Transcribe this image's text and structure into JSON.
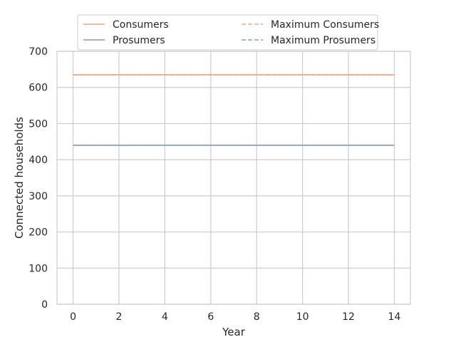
{
  "chart_data": {
    "type": "line",
    "title": "",
    "xlabel": "Year",
    "ylabel": "Connected households",
    "xlim": [
      -0.7,
      14.7
    ],
    "ylim": [
      0,
      700
    ],
    "xticks": [
      0,
      2,
      4,
      6,
      8,
      10,
      12,
      14
    ],
    "yticks": [
      0,
      100,
      200,
      300,
      400,
      500,
      600,
      700
    ],
    "grid": true,
    "legend_placement": "top-center",
    "x": [
      0,
      1,
      2,
      3,
      4,
      5,
      6,
      7,
      8,
      9,
      10,
      11,
      12,
      13,
      14
    ],
    "series": [
      {
        "name": "Consumers",
        "style": "solid",
        "color": "#f4a582",
        "values": [
          635,
          635,
          635,
          635,
          635,
          635,
          635,
          635,
          635,
          635,
          635,
          635,
          635,
          635,
          635
        ]
      },
      {
        "name": "Maximum Consumers",
        "style": "dashed",
        "color": "#f4a582",
        "values": [
          635,
          635,
          635,
          635,
          635,
          635,
          635,
          635,
          635,
          635,
          635,
          635,
          635,
          635,
          635
        ]
      },
      {
        "name": "Prosumers",
        "style": "solid",
        "color": "#7b9fc7",
        "values": [
          440,
          440,
          440,
          440,
          440,
          440,
          440,
          440,
          440,
          440,
          440,
          440,
          440,
          440,
          440
        ]
      },
      {
        "name": "Maximum Prosumers",
        "style": "dashed",
        "color": "#7b9fc7",
        "values": [
          440,
          440,
          440,
          440,
          440,
          440,
          440,
          440,
          440,
          440,
          440,
          440,
          440,
          440,
          440
        ]
      }
    ],
    "legend_order": [
      0,
      2,
      1,
      3
    ]
  }
}
